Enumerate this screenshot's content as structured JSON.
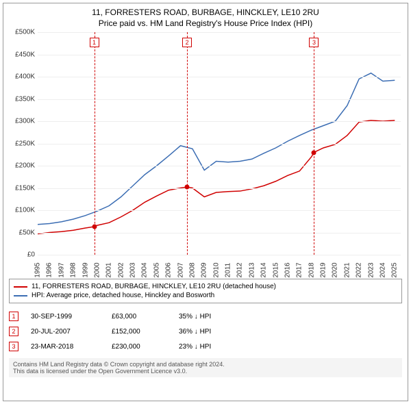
{
  "title_main": "11, FORRESTERS ROAD, BURBAGE, HINCKLEY, LE10 2RU",
  "title_sub": "Price paid vs. HM Land Registry's House Price Index (HPI)",
  "title_fontsize": 12,
  "chart": {
    "type": "line",
    "background_color": "#ffffff",
    "grid_color": "#eeeeee",
    "xlim": [
      1995,
      2025.5
    ],
    "ylim": [
      0,
      500000
    ],
    "ytick_step": 50000,
    "ytick_prefix": "£",
    "ytick_suffixK": true,
    "xticks": [
      1995,
      1996,
      1997,
      1998,
      1999,
      2000,
      2001,
      2002,
      2003,
      2004,
      2005,
      2006,
      2007,
      2008,
      2009,
      2010,
      2011,
      2012,
      2013,
      2014,
      2015,
      2016,
      2017,
      2018,
      2019,
      2020,
      2021,
      2022,
      2023,
      2024,
      2025
    ],
    "series": [
      {
        "name": "property",
        "color": "#d00000",
        "line_width": 1.5,
        "points": [
          [
            1995,
            47000
          ],
          [
            1996,
            50000
          ],
          [
            1997,
            52000
          ],
          [
            1998,
            55000
          ],
          [
            1999,
            60000
          ],
          [
            1999.75,
            63000
          ],
          [
            2000,
            66000
          ],
          [
            2001,
            72000
          ],
          [
            2002,
            85000
          ],
          [
            2003,
            100000
          ],
          [
            2004,
            118000
          ],
          [
            2005,
            132000
          ],
          [
            2006,
            145000
          ],
          [
            2007,
            150000
          ],
          [
            2007.55,
            152000
          ],
          [
            2008,
            150000
          ],
          [
            2009,
            130000
          ],
          [
            2010,
            140000
          ],
          [
            2011,
            142000
          ],
          [
            2012,
            143000
          ],
          [
            2013,
            148000
          ],
          [
            2014,
            155000
          ],
          [
            2015,
            165000
          ],
          [
            2016,
            178000
          ],
          [
            2017,
            188000
          ],
          [
            2018,
            220000
          ],
          [
            2018.22,
            230000
          ],
          [
            2019,
            240000
          ],
          [
            2020,
            248000
          ],
          [
            2021,
            268000
          ],
          [
            2022,
            298000
          ],
          [
            2023,
            302000
          ],
          [
            2024,
            300000
          ],
          [
            2025,
            302000
          ]
        ]
      },
      {
        "name": "hpi",
        "color": "#3b6db3",
        "line_width": 1.5,
        "points": [
          [
            1995,
            68000
          ],
          [
            1996,
            70000
          ],
          [
            1997,
            74000
          ],
          [
            1998,
            80000
          ],
          [
            1999,
            88000
          ],
          [
            2000,
            98000
          ],
          [
            2001,
            110000
          ],
          [
            2002,
            130000
          ],
          [
            2003,
            155000
          ],
          [
            2004,
            180000
          ],
          [
            2005,
            200000
          ],
          [
            2006,
            222000
          ],
          [
            2007,
            245000
          ],
          [
            2008,
            238000
          ],
          [
            2009,
            190000
          ],
          [
            2010,
            210000
          ],
          [
            2011,
            208000
          ],
          [
            2012,
            210000
          ],
          [
            2013,
            215000
          ],
          [
            2014,
            228000
          ],
          [
            2015,
            240000
          ],
          [
            2016,
            255000
          ],
          [
            2017,
            268000
          ],
          [
            2018,
            280000
          ],
          [
            2019,
            290000
          ],
          [
            2020,
            300000
          ],
          [
            2021,
            335000
          ],
          [
            2022,
            395000
          ],
          [
            2023,
            408000
          ],
          [
            2024,
            390000
          ],
          [
            2025,
            392000
          ]
        ]
      }
    ],
    "markers": [
      {
        "id": "1",
        "year": 1999.75,
        "value": 63000,
        "color": "#d00000"
      },
      {
        "id": "2",
        "year": 2007.55,
        "value": 152000,
        "color": "#d00000"
      },
      {
        "id": "3",
        "year": 2018.22,
        "value": 230000,
        "color": "#d00000"
      }
    ]
  },
  "legend": {
    "items": [
      {
        "color": "#d00000",
        "label": "11, FORRESTERS ROAD, BURBAGE, HINCKLEY, LE10 2RU (detached house)"
      },
      {
        "color": "#3b6db3",
        "label": "HPI: Average price, detached house, Hinckley and Bosworth"
      }
    ]
  },
  "events": [
    {
      "id": "1",
      "color": "#d00000",
      "date": "30-SEP-1999",
      "price": "£63,000",
      "delta": "35% ↓ HPI"
    },
    {
      "id": "2",
      "color": "#d00000",
      "date": "20-JUL-2007",
      "price": "£152,000",
      "delta": "36% ↓ HPI"
    },
    {
      "id": "3",
      "color": "#d00000",
      "date": "23-MAR-2018",
      "price": "£230,000",
      "delta": "23% ↓ HPI"
    }
  ],
  "footer_line1": "Contains HM Land Registry data © Crown copyright and database right 2024.",
  "footer_line2": "This data is licensed under the Open Government Licence v3.0."
}
